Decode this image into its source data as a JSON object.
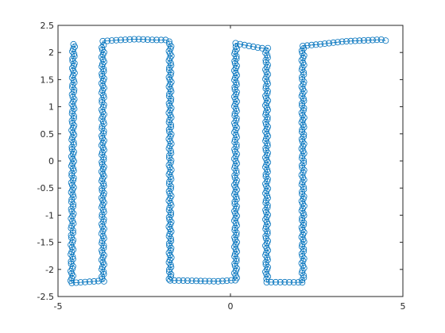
{
  "chart_data": {
    "type": "line",
    "marker": "circle",
    "title": "",
    "xlabel": "",
    "ylabel": "",
    "xlim": [
      -5,
      5
    ],
    "ylim": [
      -2.5,
      2.5
    ],
    "grid": false,
    "legend": "none",
    "line_color": "#0072BD",
    "x_ticks": [
      "-5",
      "0",
      "5"
    ],
    "x_tick_values": [
      -5,
      0,
      5
    ],
    "y_ticks": [
      "-2.5",
      "-2",
      "-1.5",
      "-1",
      "-0.5",
      "0",
      "0.5",
      "1",
      "1.5",
      "2",
      "2.5"
    ],
    "y_tick_values": [
      -2.5,
      -2,
      -1.5,
      -1,
      -0.5,
      0,
      0.5,
      1,
      1.5,
      2,
      2.5
    ],
    "series": [
      {
        "path": [
          [
            -4.55,
            2.15
          ],
          [
            -4.6,
            -2.25
          ],
          [
            -3.7,
            -2.22
          ],
          [
            -3.7,
            2.18
          ],
          [
            -1.75,
            2.2
          ],
          [
            -1.75,
            -2.22
          ],
          [
            0.15,
            -2.2
          ],
          [
            0.15,
            2.15
          ],
          [
            1.05,
            2.08
          ],
          [
            1.05,
            -2.22
          ],
          [
            2.1,
            -2.24
          ],
          [
            2.1,
            2.12
          ],
          [
            4.5,
            2.22
          ]
        ],
        "top_edge": [
          [
            -4.55,
            2.17
          ],
          [
            4.5,
            2.22
          ]
        ],
        "bottom_edge": [
          [
            -4.6,
            -2.22
          ],
          [
            4.5,
            -2.22
          ]
        ],
        "top_edge_noise": [
          0.0,
          0.03,
          0.06,
          0.08,
          0.05,
          0.04,
          0.08,
          0.07,
          0.02,
          -0.02,
          0.03,
          0.0,
          0.02,
          0.05,
          0.04,
          0.03
        ],
        "bottom_edge_noise": [
          0.0,
          0.01,
          0.02,
          0.05,
          0.03,
          0.02,
          0.0,
          -0.02,
          0.01,
          -0.03,
          -0.01,
          0.0,
          -0.02,
          0.0,
          0.01,
          0.02
        ]
      }
    ]
  }
}
